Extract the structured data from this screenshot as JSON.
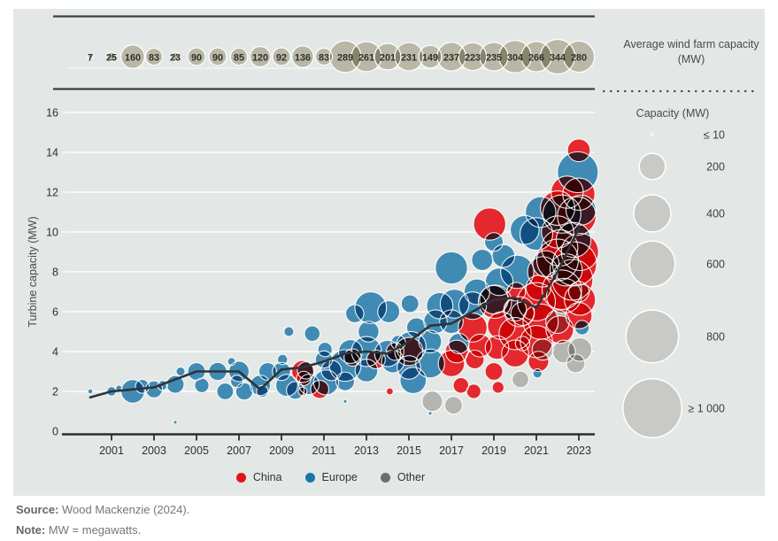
{
  "figure": {
    "bg": "#ffffff",
    "panel_bg": "#e3e8e6"
  },
  "strip": {
    "title": "Average wind farm capacity (MW)",
    "years_start": 2000,
    "values": [
      7,
      25,
      160,
      83,
      23,
      90,
      90,
      85,
      120,
      92,
      136,
      83,
      289,
      261,
      201,
      231,
      149,
      237,
      223,
      235,
      304,
      266,
      344,
      280
    ],
    "bubble_color": "#b9b8a6",
    "label_color": "#31312a",
    "rule_color": "#3c4043"
  },
  "chart_data": {
    "type": "scatter",
    "subtype": "bubble-scatter-with-trend-line",
    "ylabel": "Turbine capacity (MW)",
    "xlabel": "",
    "ylim": [
      0,
      16
    ],
    "xlim": [
      1999.5,
      2023.8
    ],
    "grid": "horizontal-white",
    "y_ticks": [
      0,
      2,
      4,
      6,
      8,
      10,
      12,
      14,
      16
    ],
    "x_ticks": [
      2001,
      2003,
      2005,
      2007,
      2009,
      2011,
      2013,
      2015,
      2017,
      2019,
      2021,
      2023
    ],
    "bubble_size_meaning": "bubble radius ~ sqrt(wind farm capacity MW)",
    "region_codes": {
      "C": "China",
      "E": "Europe",
      "O": "Other"
    },
    "region_colors": {
      "C": "#e2141a",
      "E": "#2e81ad",
      "O": "#aeaeaa"
    },
    "series_legend": [
      {
        "label": "China",
        "color": "#e0151a"
      },
      {
        "label": "Europe",
        "color": "#1778a8"
      },
      {
        "label": "Other",
        "color": "#6d6d6d"
      }
    ],
    "avg_line": {
      "name": "average turbine capacity",
      "color": "#2f3439",
      "x": [
        2000,
        2001,
        2002,
        2003,
        2004,
        2005,
        2006,
        2007,
        2008,
        2009,
        2010,
        2011,
        2012,
        2013,
        2014,
        2015,
        2016,
        2017,
        2018,
        2019,
        2020,
        2021,
        2022,
        2023
      ],
      "y": [
        1.7,
        2.0,
        2.1,
        2.2,
        2.6,
        3.0,
        3.0,
        3.0,
        2.1,
        3.1,
        3.2,
        3.5,
        3.9,
        4.0,
        3.9,
        4.5,
        5.3,
        5.4,
        6.0,
        6.6,
        6.7,
        6.2,
        8.0,
        10.2
      ]
    },
    "bubbles": [
      [
        2000.0,
        2.0,
        7,
        "E"
      ],
      [
        2001.0,
        2.0,
        25,
        "E"
      ],
      [
        2001.35,
        2.15,
        12,
        "E"
      ],
      [
        2002.0,
        2.0,
        160,
        "E"
      ],
      [
        2002.45,
        2.25,
        55,
        "E"
      ],
      [
        2003.0,
        2.1,
        83,
        "E"
      ],
      [
        2003.4,
        2.3,
        28,
        "E"
      ],
      [
        2004.0,
        2.35,
        90,
        "E"
      ],
      [
        2004.25,
        3.0,
        23,
        "E"
      ],
      [
        2004.0,
        0.45,
        4,
        "E"
      ],
      [
        2005.0,
        3.0,
        90,
        "E"
      ],
      [
        2005.25,
        2.3,
        60,
        "E"
      ],
      [
        2006.0,
        3.0,
        95,
        "E"
      ],
      [
        2006.35,
        2.0,
        80,
        "E"
      ],
      [
        2006.65,
        3.5,
        18,
        "E"
      ],
      [
        2007.0,
        3.0,
        120,
        "E"
      ],
      [
        2007.25,
        2.0,
        85,
        "E"
      ],
      [
        2006.9,
        2.5,
        45,
        "E"
      ],
      [
        2008.0,
        2.3,
        120,
        "E"
      ],
      [
        2008.35,
        3.0,
        90,
        "E"
      ],
      [
        2008.1,
        2.0,
        40,
        "E"
      ],
      [
        2009.0,
        3.0,
        95,
        "E"
      ],
      [
        2009.25,
        2.3,
        140,
        "E"
      ],
      [
        2009.05,
        3.6,
        30,
        "E"
      ],
      [
        2009.35,
        5.0,
        28,
        "E"
      ],
      [
        2009.65,
        2.05,
        90,
        "E"
      ],
      [
        2010.0,
        3.0,
        140,
        "C"
      ],
      [
        2010.15,
        3.05,
        85,
        "E"
      ],
      [
        2010.0,
        2.0,
        22,
        "C"
      ],
      [
        2010.45,
        4.9,
        70,
        "E"
      ],
      [
        2010.3,
        2.35,
        120,
        "E"
      ],
      [
        2010.05,
        2.65,
        60,
        "C"
      ],
      [
        2011.0,
        3.6,
        85,
        "E"
      ],
      [
        2011.1,
        2.45,
        180,
        "E"
      ],
      [
        2011.35,
        3.05,
        120,
        "E"
      ],
      [
        2011.05,
        4.1,
        60,
        "E"
      ],
      [
        2010.8,
        2.1,
        95,
        "C"
      ],
      [
        2012.0,
        3.3,
        290,
        "E"
      ],
      [
        2012.25,
        4.0,
        165,
        "E"
      ],
      [
        2012.0,
        2.5,
        100,
        "E"
      ],
      [
        2012.35,
        3.7,
        85,
        "C"
      ],
      [
        2012.0,
        1.5,
        4,
        "E"
      ],
      [
        2012.45,
        5.9,
        95,
        "E"
      ],
      [
        2013.0,
        4.0,
        260,
        "E"
      ],
      [
        2013.2,
        6.2,
        290,
        "E"
      ],
      [
        2013.0,
        3.05,
        150,
        "E"
      ],
      [
        2013.45,
        3.6,
        100,
        "C"
      ],
      [
        2013.1,
        5.0,
        125,
        "E"
      ],
      [
        2014.0,
        3.9,
        200,
        "E"
      ],
      [
        2014.25,
        3.5,
        150,
        "E"
      ],
      [
        2014.05,
        6.0,
        140,
        "E"
      ],
      [
        2014.35,
        4.0,
        90,
        "C"
      ],
      [
        2014.1,
        2.0,
        14,
        "C"
      ],
      [
        2014.5,
        4.45,
        60,
        "E"
      ],
      [
        2015.0,
        4.0,
        230,
        "C"
      ],
      [
        2015.1,
        4.25,
        260,
        "E"
      ],
      [
        2015.0,
        3.2,
        160,
        "E"
      ],
      [
        2015.35,
        5.2,
        110,
        "E"
      ],
      [
        2015.2,
        2.55,
        200,
        "E"
      ],
      [
        2015.05,
        6.4,
        90,
        "E"
      ],
      [
        2016.0,
        4.5,
        150,
        "E"
      ],
      [
        2016.25,
        5.5,
        160,
        "E"
      ],
      [
        2016.0,
        3.4,
        240,
        "E"
      ],
      [
        2016.1,
        1.5,
        120,
        "O"
      ],
      [
        2016.45,
        6.3,
        200,
        "E"
      ],
      [
        2016.0,
        0.9,
        4,
        "E"
      ],
      [
        2017.0,
        8.2,
        300,
        "E"
      ],
      [
        2017.15,
        6.4,
        240,
        "E"
      ],
      [
        2017.0,
        5.5,
        160,
        "E"
      ],
      [
        2017.35,
        4.4,
        120,
        "E"
      ],
      [
        2017.25,
        4.0,
        150,
        "C"
      ],
      [
        2017.0,
        3.4,
        200,
        "C"
      ],
      [
        2017.45,
        2.3,
        70,
        "C"
      ],
      [
        2017.1,
        1.3,
        90,
        "O"
      ],
      [
        2018.0,
        6.3,
        220,
        "E"
      ],
      [
        2018.2,
        7.0,
        190,
        "E"
      ],
      [
        2018.0,
        5.2,
        240,
        "C"
      ],
      [
        2018.35,
        4.3,
        150,
        "C"
      ],
      [
        2018.1,
        3.6,
        100,
        "C"
      ],
      [
        2018.45,
        8.6,
        130,
        "E"
      ],
      [
        2018.05,
        2.0,
        60,
        "C"
      ],
      [
        2018.8,
        10.4,
        300,
        "C"
      ],
      [
        2019.0,
        6.6,
        235,
        "E"
      ],
      [
        2019.25,
        7.5,
        220,
        "E"
      ],
      [
        2019.05,
        6.5,
        320,
        "C"
      ],
      [
        2019.35,
        5.3,
        220,
        "C"
      ],
      [
        2019.15,
        4.2,
        160,
        "C"
      ],
      [
        2019.0,
        3.0,
        90,
        "C"
      ],
      [
        2019.45,
        8.8,
        150,
        "E"
      ],
      [
        2019.2,
        2.2,
        40,
        "C"
      ],
      [
        2019.0,
        9.5,
        100,
        "E"
      ],
      [
        2020.0,
        4.9,
        300,
        "C"
      ],
      [
        2020.2,
        6.0,
        260,
        "C"
      ],
      [
        2020.0,
        3.9,
        210,
        "C"
      ],
      [
        2020.35,
        5.9,
        160,
        "C"
      ],
      [
        2020.1,
        8.0,
        320,
        "E"
      ],
      [
        2020.45,
        10.1,
        240,
        "E"
      ],
      [
        2020.0,
        6.1,
        150,
        "E"
      ],
      [
        2020.25,
        2.6,
        80,
        "O"
      ],
      [
        2020.35,
        4.4,
        60,
        "C"
      ],
      [
        2020.05,
        7.0,
        100,
        "C"
      ],
      [
        2021.0,
        6.5,
        420,
        "C"
      ],
      [
        2021.2,
        5.5,
        360,
        "C"
      ],
      [
        2021.0,
        4.5,
        300,
        "C"
      ],
      [
        2021.3,
        8.0,
        266,
        "C"
      ],
      [
        2021.1,
        3.5,
        120,
        "C"
      ],
      [
        2021.0,
        9.9,
        310,
        "E"
      ],
      [
        2021.45,
        8.4,
        200,
        "E"
      ],
      [
        2021.2,
        11.0,
        270,
        "E"
      ],
      [
        2021.05,
        2.9,
        24,
        "E"
      ],
      [
        2021.3,
        4.1,
        130,
        "O"
      ],
      [
        2021.1,
        7.2,
        180,
        "C"
      ],
      [
        2022.0,
        8.6,
        500,
        "C"
      ],
      [
        2022.2,
        7.1,
        450,
        "C"
      ],
      [
        2022.0,
        11.2,
        344,
        "C"
      ],
      [
        2022.3,
        6.8,
        350,
        "C"
      ],
      [
        2022.1,
        5.1,
        220,
        "C"
      ],
      [
        2022.0,
        10.0,
        300,
        "C"
      ],
      [
        2022.2,
        10.9,
        420,
        "E"
      ],
      [
        2022.4,
        8.1,
        300,
        "E"
      ],
      [
        2022.0,
        5.5,
        160,
        "O"
      ],
      [
        2022.3,
        4.0,
        150,
        "O"
      ],
      [
        2022.1,
        9.2,
        380,
        "C"
      ],
      [
        2022.45,
        12.0,
        300,
        "C"
      ],
      [
        2023.0,
        14.1,
        150,
        "C"
      ],
      [
        2022.95,
        13.0,
        480,
        "E"
      ],
      [
        2023.0,
        11.9,
        300,
        "C"
      ],
      [
        2022.9,
        10.8,
        430,
        "C"
      ],
      [
        2023.05,
        9.0,
        400,
        "C"
      ],
      [
        2022.8,
        8.4,
        560,
        "C"
      ],
      [
        2022.7,
        7.6,
        480,
        "C"
      ],
      [
        2023.05,
        6.6,
        280,
        "C"
      ],
      [
        2023.0,
        5.8,
        200,
        "C"
      ],
      [
        2023.1,
        11.1,
        260,
        "E"
      ],
      [
        2022.75,
        9.6,
        350,
        "E"
      ],
      [
        2023.0,
        7.0,
        120,
        "O"
      ],
      [
        2023.05,
        4.1,
        160,
        "O"
      ],
      [
        2022.85,
        3.4,
        100,
        "O"
      ],
      [
        2023.15,
        5.2,
        60,
        "E"
      ]
    ]
  },
  "size_legend": {
    "title": "Capacity (MW)",
    "circle_color": "#c9c9c5",
    "entries": [
      {
        "label": "≤ 10",
        "mw": 10
      },
      {
        "label": "200",
        "mw": 200
      },
      {
        "label": "400",
        "mw": 400
      },
      {
        "label": "600",
        "mw": 600
      },
      {
        "label": "800",
        "mw": 800
      },
      {
        "label": "≥ 1 000",
        "mw": 1000
      }
    ]
  },
  "footer": {
    "source_label": "Source:",
    "source_text": " Wood Mackenzie (2024).",
    "note_label": "Note:",
    "note_text": " MW = megawatts."
  }
}
